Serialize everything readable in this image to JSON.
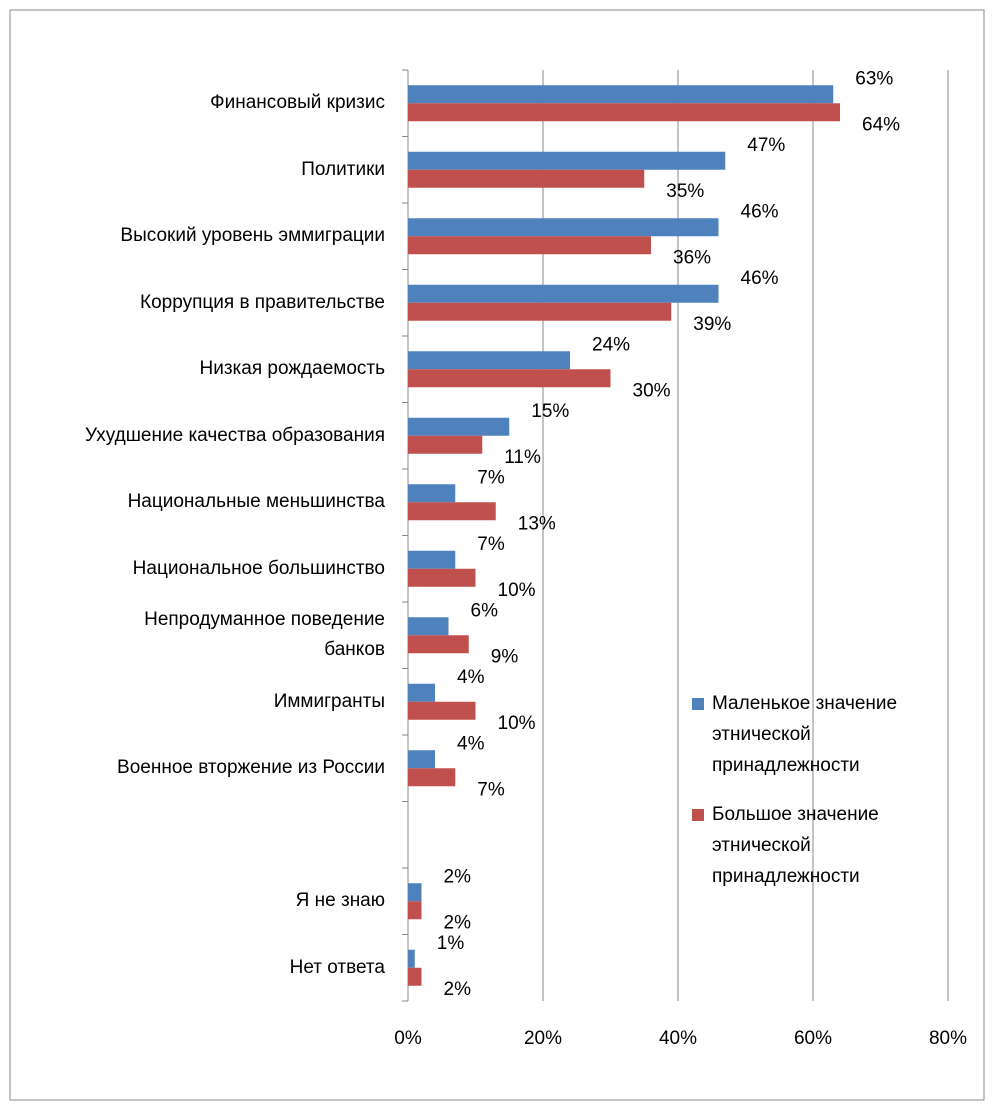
{
  "chart_data": {
    "type": "bar",
    "orientation": "horizontal",
    "categories": [
      "Финансовый кризис",
      "Политики",
      "Высокий уровень эммиграции",
      "Коррупция в правительстве",
      "Низкая рождаемость",
      "Ухудшение качества образования",
      "Национальные меньшинства",
      "Национальное большинство",
      "Непродуманное поведение банков",
      "Иммигранты",
      "Военное вторжение из России",
      null,
      "Я не знаю",
      "Нет ответа"
    ],
    "series": [
      {
        "name": "Маленькое значение этнической принадлежности",
        "color": "#4f81bd",
        "values": [
          63,
          47,
          46,
          46,
          24,
          15,
          7,
          7,
          6,
          4,
          4,
          null,
          2,
          1
        ],
        "value_labels": [
          "63%",
          "47%",
          "46%",
          "46%",
          "24%",
          "15%",
          "7%",
          "7%",
          "6%",
          "4%",
          "4%",
          null,
          "2%",
          "1%"
        ]
      },
      {
        "name": "Большое значение этнической принадлежности",
        "color": "#c0504d",
        "values": [
          64,
          35,
          36,
          39,
          30,
          11,
          13,
          10,
          9,
          10,
          7,
          null,
          2,
          2
        ],
        "value_labels": [
          "64%",
          "35%",
          "36%",
          "39%",
          "30%",
          "11%",
          "13%",
          "10%",
          "9%",
          "10%",
          "7%",
          null,
          "2%",
          "2%"
        ]
      }
    ],
    "xlim": [
      0,
      80
    ],
    "xticks": [
      {
        "value": 0,
        "label": "0%"
      },
      {
        "value": 20,
        "label": "20%"
      },
      {
        "value": 40,
        "label": "40%"
      },
      {
        "value": 60,
        "label": "60%"
      },
      {
        "value": 80,
        "label": "80%"
      }
    ],
    "grid": true,
    "legend": "right"
  }
}
